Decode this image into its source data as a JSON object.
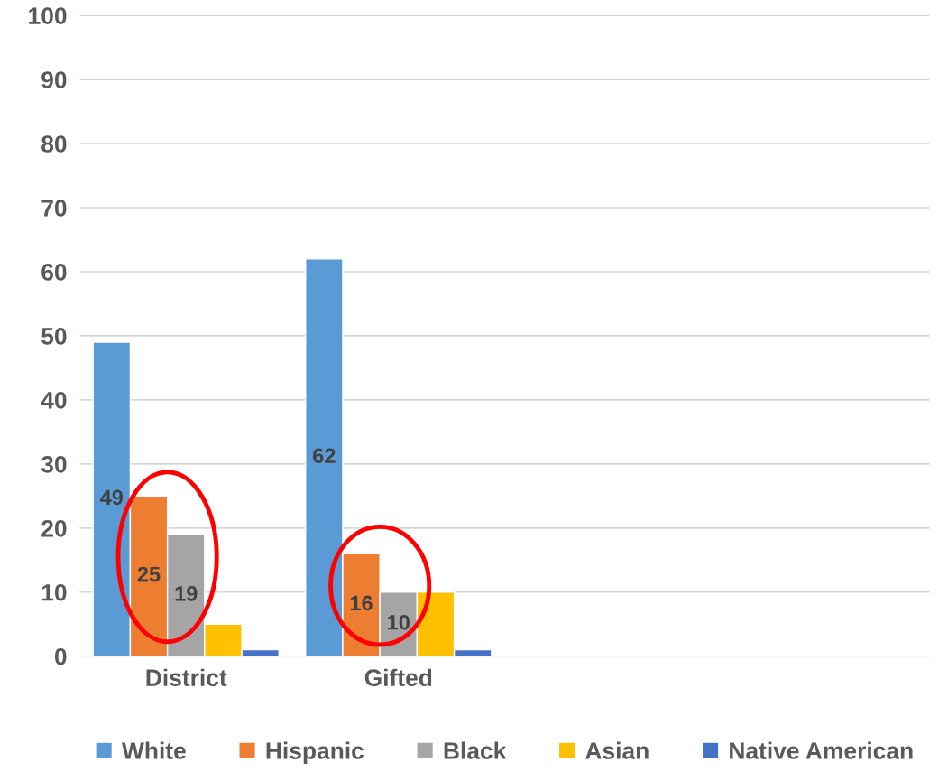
{
  "chart_data": {
    "type": "bar",
    "categories": [
      "District",
      "Gifted",
      null,
      null
    ],
    "series": [
      {
        "name": "White",
        "color": "#5b9bd5",
        "values": [
          49,
          62,
          null,
          null
        ],
        "value_labels": [
          "49",
          "62",
          null,
          null
        ]
      },
      {
        "name": "Hispanic",
        "color": "#ed7d31",
        "values": [
          25,
          16,
          null,
          null
        ],
        "value_labels": [
          "25",
          "16",
          null,
          null
        ]
      },
      {
        "name": "Black",
        "color": "#a5a5a5",
        "values": [
          19,
          10,
          null,
          null
        ],
        "value_labels": [
          "19",
          "10",
          null,
          null
        ]
      },
      {
        "name": "Asian",
        "color": "#ffc000",
        "values": [
          5,
          10,
          null,
          null
        ],
        "value_labels": [
          null,
          null,
          null,
          null
        ]
      },
      {
        "name": "Native American",
        "color": "#4472c4",
        "values": [
          1,
          1,
          null,
          null
        ],
        "value_labels": [
          null,
          null,
          null,
          null
        ]
      }
    ],
    "ylim": [
      0,
      100
    ],
    "yticks": [
      0,
      10,
      20,
      30,
      40,
      50,
      60,
      70,
      80,
      90,
      100
    ],
    "grid": "y",
    "legend": "bottom"
  }
}
